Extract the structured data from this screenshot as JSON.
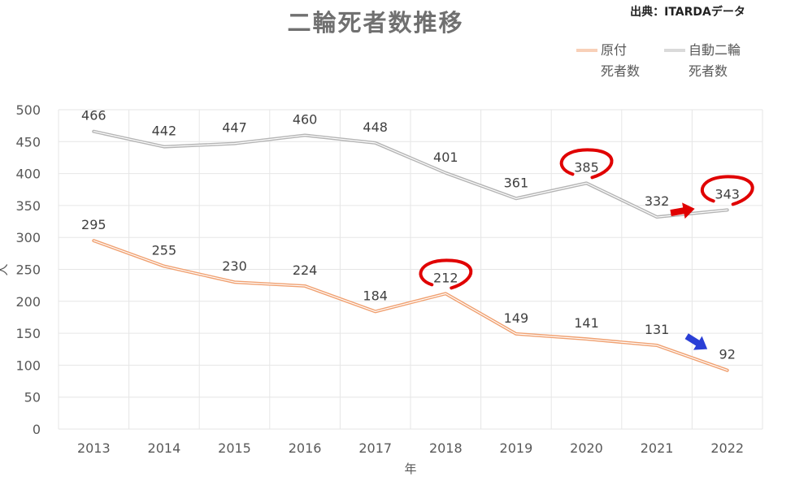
{
  "chart_data": {
    "type": "line",
    "title": "二輪死者数推移",
    "source": "出典：ITARDAデータ",
    "xlabel": "年",
    "ylabel": "人",
    "categories": [
      "2013",
      "2014",
      "2015",
      "2016",
      "2017",
      "2018",
      "2019",
      "2020",
      "2021",
      "2022"
    ],
    "ylim": [
      0,
      500
    ],
    "yticks": [
      0,
      50,
      100,
      150,
      200,
      250,
      300,
      350,
      400,
      450,
      500
    ],
    "grid": true,
    "legend_position": "top-right",
    "series": [
      {
        "name": "原付",
        "name_line2": "死者数",
        "color": "#f0a070",
        "values": [
          295,
          255,
          230,
          224,
          184,
          212,
          149,
          141,
          131,
          92
        ]
      },
      {
        "name": "自動二輪",
        "name_line2": "死者数",
        "color": "#b4b4b4",
        "values": [
          466,
          442,
          447,
          460,
          448,
          401,
          361,
          385,
          332,
          343
        ]
      }
    ],
    "annotations": [
      {
        "type": "circle",
        "color": "#e00000",
        "series": 1,
        "category": "2020"
      },
      {
        "type": "circle",
        "color": "#e00000",
        "series": 1,
        "category": "2022"
      },
      {
        "type": "circle",
        "color": "#e00000",
        "series": 0,
        "category": "2018"
      },
      {
        "type": "arrow",
        "color": "#e00000",
        "direction": "right"
      },
      {
        "type": "arrow",
        "color": "#2a3fd6",
        "direction": "down-right"
      }
    ]
  }
}
